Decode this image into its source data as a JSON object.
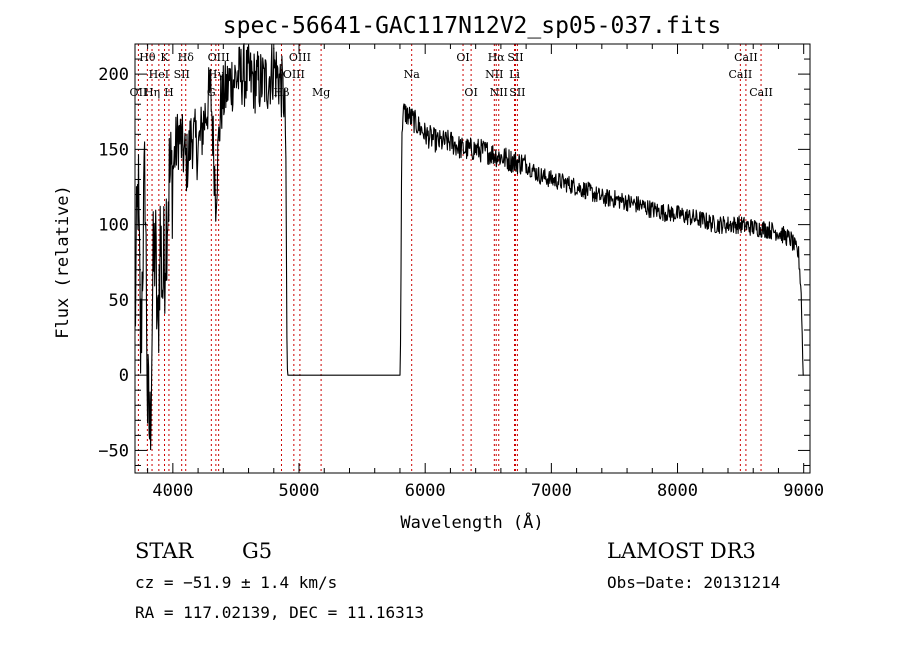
{
  "chart_data": {
    "type": "line",
    "title": "spec-56641-GAC117N12V2_sp05-037.fits",
    "xlabel": "Wavelength (Å)",
    "ylabel": "Flux (relative)",
    "xlim": [
      3700,
      9050
    ],
    "ylim": [
      -65,
      220
    ],
    "x_ticks": [
      4000,
      5000,
      6000,
      7000,
      8000,
      9000
    ],
    "y_ticks": [
      -50,
      0,
      50,
      100,
      150,
      200
    ],
    "grid": false,
    "line_color": "#000000",
    "marker_color": "#cc0000",
    "spectrum_anchors": [
      [
        3700,
        35
      ],
      [
        3725,
        130
      ],
      [
        3745,
        10
      ],
      [
        3760,
        80
      ],
      [
        3780,
        135
      ],
      [
        3800,
        -20
      ],
      [
        3820,
        -40
      ],
      [
        3840,
        60
      ],
      [
        3860,
        90
      ],
      [
        3880,
        20
      ],
      [
        3900,
        95
      ],
      [
        3920,
        60
      ],
      [
        3950,
        105
      ],
      [
        3970,
        130
      ],
      [
        3990,
        130
      ],
      [
        4020,
        150
      ],
      [
        4050,
        160
      ],
      [
        4080,
        150
      ],
      [
        4110,
        140
      ],
      [
        4150,
        160
      ],
      [
        4200,
        150
      ],
      [
        4250,
        170
      ],
      [
        4300,
        190
      ],
      [
        4340,
        120
      ],
      [
        4380,
        180
      ],
      [
        4450,
        195
      ],
      [
        4550,
        200
      ],
      [
        4650,
        195
      ],
      [
        4750,
        195
      ],
      [
        4800,
        205
      ],
      [
        4850,
        195
      ],
      [
        4880,
        185
      ],
      [
        4895,
        160
      ],
      [
        4905,
        10
      ],
      [
        4910,
        0
      ],
      [
        5800,
        0
      ],
      [
        5805,
        25
      ],
      [
        5815,
        165
      ],
      [
        5830,
        175
      ],
      [
        5900,
        170
      ],
      [
        6000,
        160
      ],
      [
        6100,
        155
      ],
      [
        6200,
        155
      ],
      [
        6300,
        150
      ],
      [
        6400,
        150
      ],
      [
        6500,
        148
      ],
      [
        6600,
        145
      ],
      [
        6700,
        142
      ],
      [
        6800,
        140
      ],
      [
        6900,
        133
      ],
      [
        7000,
        130
      ],
      [
        7100,
        128
      ],
      [
        7200,
        125
      ],
      [
        7300,
        122
      ],
      [
        7400,
        118
      ],
      [
        7500,
        117
      ],
      [
        7600,
        115
      ],
      [
        7700,
        113
      ],
      [
        7800,
        110
      ],
      [
        7900,
        108
      ],
      [
        8000,
        107
      ],
      [
        8100,
        105
      ],
      [
        8200,
        103
      ],
      [
        8300,
        100
      ],
      [
        8400,
        100
      ],
      [
        8500,
        100
      ],
      [
        8600,
        98
      ],
      [
        8700,
        97
      ],
      [
        8800,
        95
      ],
      [
        8900,
        90
      ],
      [
        8960,
        80
      ],
      [
        8980,
        55
      ],
      [
        8995,
        0
      ],
      [
        9000,
        0
      ]
    ],
    "lines": [
      {
        "label": "Hθ",
        "wl": 3798,
        "row": 1
      },
      {
        "label": "OII",
        "wl": 3727,
        "row": 3
      },
      {
        "label": "Hη",
        "wl": 3835,
        "row": 3
      },
      {
        "label": "HeI",
        "wl": 3889,
        "row": 2
      },
      {
        "label": "K",
        "wl": 3934,
        "row": 1
      },
      {
        "label": "H",
        "wl": 3969,
        "row": 3
      },
      {
        "label": "SII",
        "wl": 4070,
        "row": 2
      },
      {
        "label": "Hδ",
        "wl": 4102,
        "row": 1
      },
      {
        "label": "G",
        "wl": 4305,
        "row": 3
      },
      {
        "label": "Hγ",
        "wl": 4341,
        "row": 2
      },
      {
        "label": "OIII",
        "wl": 4363,
        "row": 1
      },
      {
        "label": "Hβ",
        "wl": 4861,
        "row": 3
      },
      {
        "label": "OIII",
        "wl": 4959,
        "row": 2
      },
      {
        "label": "OIII",
        "wl": 5007,
        "row": 1
      },
      {
        "label": "Mg",
        "wl": 5175,
        "row": 3
      },
      {
        "label": "Na",
        "wl": 5893,
        "row": 2
      },
      {
        "label": "OI",
        "wl": 6300,
        "row": 1
      },
      {
        "label": "OI",
        "wl": 6364,
        "row": 3
      },
      {
        "label": "NII",
        "wl": 6548,
        "row": 2
      },
      {
        "label": "Hα",
        "wl": 6563,
        "row": 1
      },
      {
        "label": "NII",
        "wl": 6583,
        "row": 3
      },
      {
        "label": "Li",
        "wl": 6708,
        "row": 2
      },
      {
        "label": "SII",
        "wl": 6716,
        "row": 1
      },
      {
        "label": "SII",
        "wl": 6731,
        "row": 3
      },
      {
        "label": "CaII",
        "wl": 8498,
        "row": 2
      },
      {
        "label": "CaII",
        "wl": 8542,
        "row": 1
      },
      {
        "label": "CaII",
        "wl": 8662,
        "row": 3
      }
    ]
  },
  "info": {
    "class": "STAR",
    "subclass": "G5",
    "survey": "LAMOST DR3",
    "cz": "cz = −51.9 ± 1.4 km/s",
    "obs_date": "Obs−Date: 20131214",
    "coords": "RA = 117.02139, DEC =  11.16313"
  }
}
